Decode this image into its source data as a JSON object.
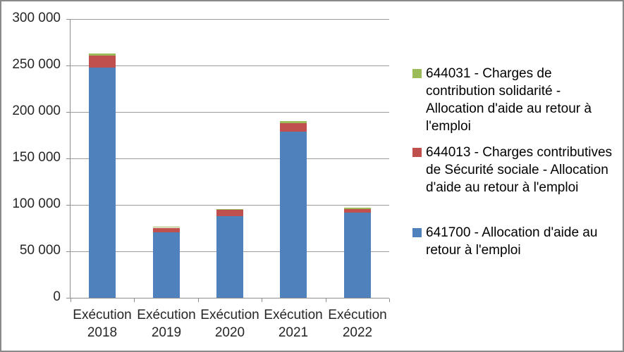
{
  "chart_data": {
    "type": "bar",
    "stacked": true,
    "title": "",
    "xlabel": "",
    "ylabel": "",
    "categories": [
      "Exécution\n2018",
      "Exécution\n2019",
      "Exécution\n2020",
      "Exécution\n2021",
      "Exécution\n2022"
    ],
    "series": [
      {
        "name": "641700 - Allocation d'aide au retour à l'emploi",
        "color": "#4F81BD",
        "values": [
          248000,
          71000,
          88500,
          179000,
          92000
        ]
      },
      {
        "name": "644013 - Charges contributives de Sécurité sociale - Allocation d'aide au retour à l'emploi",
        "color": "#C0504D",
        "values": [
          12500,
          4300,
          6500,
          9500,
          3800
        ]
      },
      {
        "name": "644031 - Charges de contribution solidarité - Allocation d'aide au retour à l'emploi",
        "color": "#9BBB59",
        "values": [
          2500,
          900,
          800,
          2000,
          1200
        ]
      }
    ],
    "ylim": [
      0,
      300000
    ],
    "ytick_step": 50000,
    "ytick_labels": [
      "0",
      "50 000",
      "100 000",
      "150 000",
      "200 000",
      "250 000",
      "300 000"
    ],
    "grid": true,
    "legend_position": "right"
  },
  "legend": {
    "items": [
      {
        "color": "#9BBB59",
        "label": "644031 - Charges de\ncontribution solidarité -\nAllocation d'aide au retour à\nl'emploi"
      },
      {
        "color": "#C0504D",
        "label": "644013 - Charges contributives\nde Sécurité sociale - Allocation\nd'aide au retour à l'emploi"
      },
      {
        "color": "#4F81BD",
        "label": "641700 - Allocation d'aide au\nretour à l'emploi"
      }
    ]
  },
  "colors": {
    "axis": "#8c8c8c",
    "gridline": "#9b9b9b",
    "border": "#898989",
    "background": "#FFFFFF",
    "text": "#262626"
  }
}
